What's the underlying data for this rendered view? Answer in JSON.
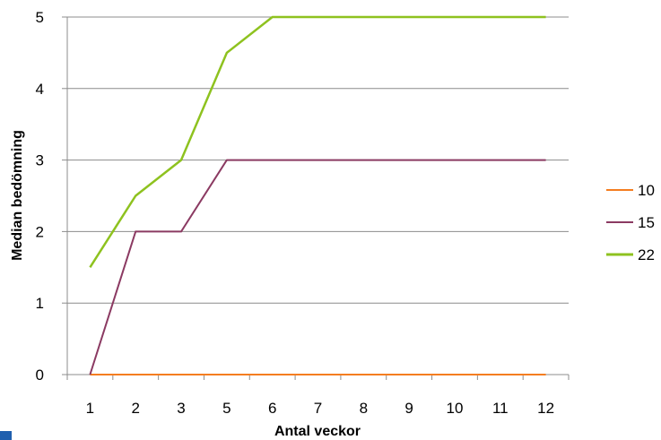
{
  "chart_data": {
    "type": "line",
    "categories": [
      "1",
      "2",
      "3",
      "5",
      "6",
      "7",
      "8",
      "9",
      "10",
      "11",
      "12"
    ],
    "xlabel": "Antal veckor",
    "ylabel": "Median bedömning",
    "ylim": [
      0,
      5
    ],
    "yticks": [
      "0",
      "1",
      "2",
      "3",
      "4",
      "5"
    ],
    "grid": "horizontal",
    "legend_position": "right",
    "series": [
      {
        "name": "10",
        "color": "#f47d20",
        "values": [
          0,
          0,
          0,
          0,
          0,
          0,
          0,
          0,
          0,
          0,
          0
        ]
      },
      {
        "name": "15",
        "color": "#8b3a62",
        "values": [
          0,
          2,
          2,
          3,
          3,
          3,
          3,
          3,
          3,
          3,
          3
        ]
      },
      {
        "name": "22",
        "color": "#8ec21f",
        "values": [
          1.5,
          2.5,
          3,
          4.5,
          5,
          5,
          5,
          5,
          5,
          5,
          5
        ]
      }
    ]
  }
}
